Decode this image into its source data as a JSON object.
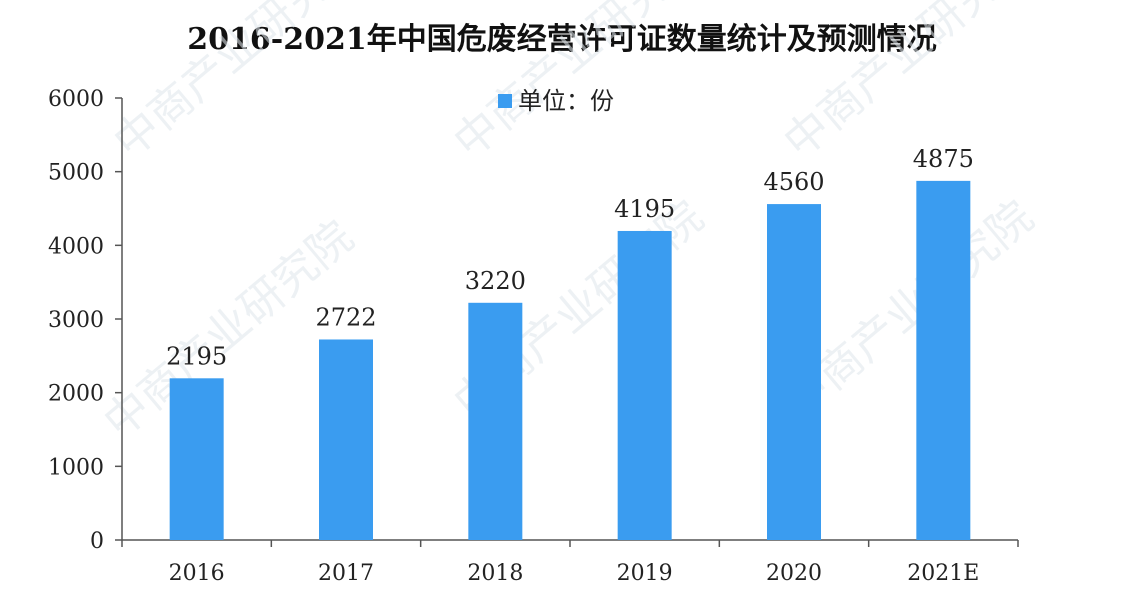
{
  "chart_data": {
    "type": "bar",
    "title": "2016-2021年中国危废经营许可证数量统计及预测情况",
    "categories": [
      "2016",
      "2017",
      "2018",
      "2019",
      "2020",
      "2021E"
    ],
    "series": [
      {
        "name": "单位：份",
        "values": [
          2195,
          2722,
          3220,
          4195,
          4560,
          4875
        ]
      }
    ],
    "data_labels": [
      "2195",
      "2722",
      "3220",
      "4195",
      "4560",
      "4875"
    ],
    "yticks": [
      "0",
      "1000",
      "2000",
      "3000",
      "4000",
      "5000",
      "6000"
    ],
    "ylim": [
      0,
      6000
    ],
    "xlabel": "",
    "ylabel": "",
    "legend_position": "top",
    "grid": false,
    "bar_color": "#3a9cf0"
  }
}
